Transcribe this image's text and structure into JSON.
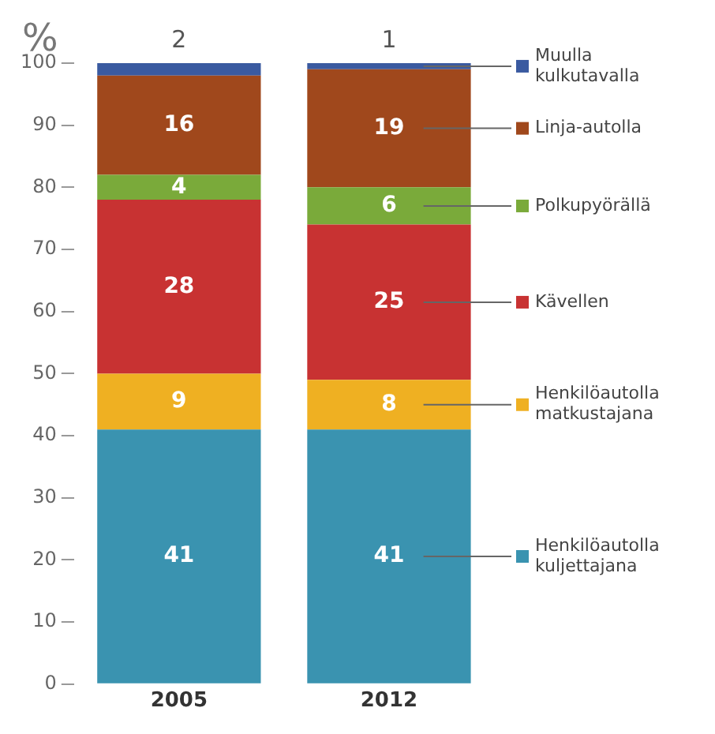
{
  "chart_data": {
    "type": "bar",
    "stacked": true,
    "ylabel": "%",
    "categories": [
      "2005",
      "2012"
    ],
    "ylim": [
      0,
      100
    ],
    "yticks": [
      0,
      10,
      20,
      30,
      40,
      50,
      60,
      70,
      80,
      90,
      100
    ],
    "grid": false,
    "legend": "right",
    "data_labels": true,
    "series": [
      {
        "name": "Henkilöautolla kuljettajana",
        "color": "#3a93b0",
        "values": [
          41,
          41
        ]
      },
      {
        "name": "Henkilöautolla matkustajana",
        "color": "#efb022",
        "values": [
          9,
          8
        ]
      },
      {
        "name": "Kävellen",
        "color": "#c83232",
        "values": [
          28,
          25
        ]
      },
      {
        "name": "Polkupyörällä",
        "color": "#7aaa3a",
        "values": [
          4,
          6
        ]
      },
      {
        "name": "Linja-autolla",
        "color": "#a0481c",
        "values": [
          16,
          19
        ]
      },
      {
        "name": "Muulla kulkutavalla",
        "color": "#3a5aa0",
        "values": [
          2,
          1
        ]
      }
    ]
  }
}
